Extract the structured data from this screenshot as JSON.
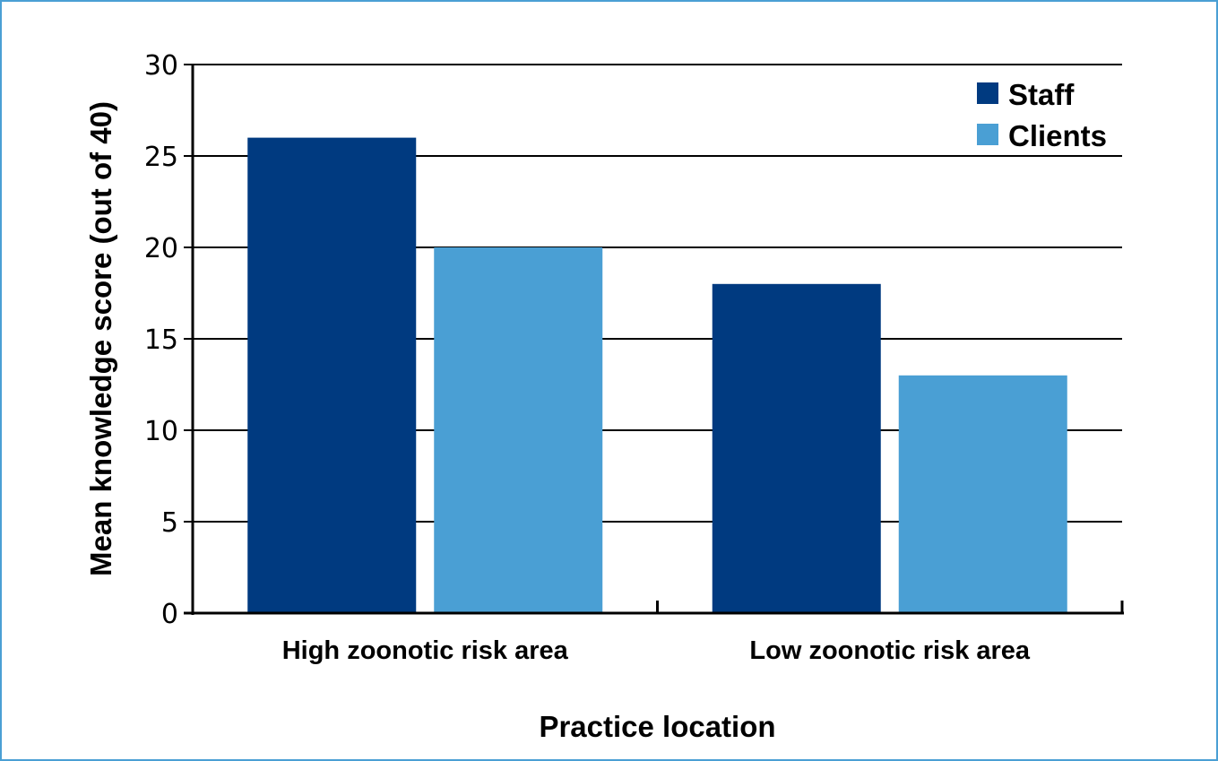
{
  "chart_data": {
    "type": "bar",
    "title": "",
    "xlabel": "Practice location",
    "ylabel": "Mean knowledge score (out of 40)",
    "categories": [
      "High zoonotic risk area",
      "Low zoonotic risk area"
    ],
    "series": [
      {
        "name": "Staff",
        "values": [
          26,
          18
        ],
        "color": "#003a80"
      },
      {
        "name": "Clients",
        "values": [
          20,
          13
        ],
        "color": "#4a9fd4"
      }
    ],
    "ylim": [
      0,
      30
    ],
    "yticks": [
      0,
      5,
      10,
      15,
      20,
      25,
      30
    ],
    "grid": true,
    "legend_position": "top-right"
  }
}
